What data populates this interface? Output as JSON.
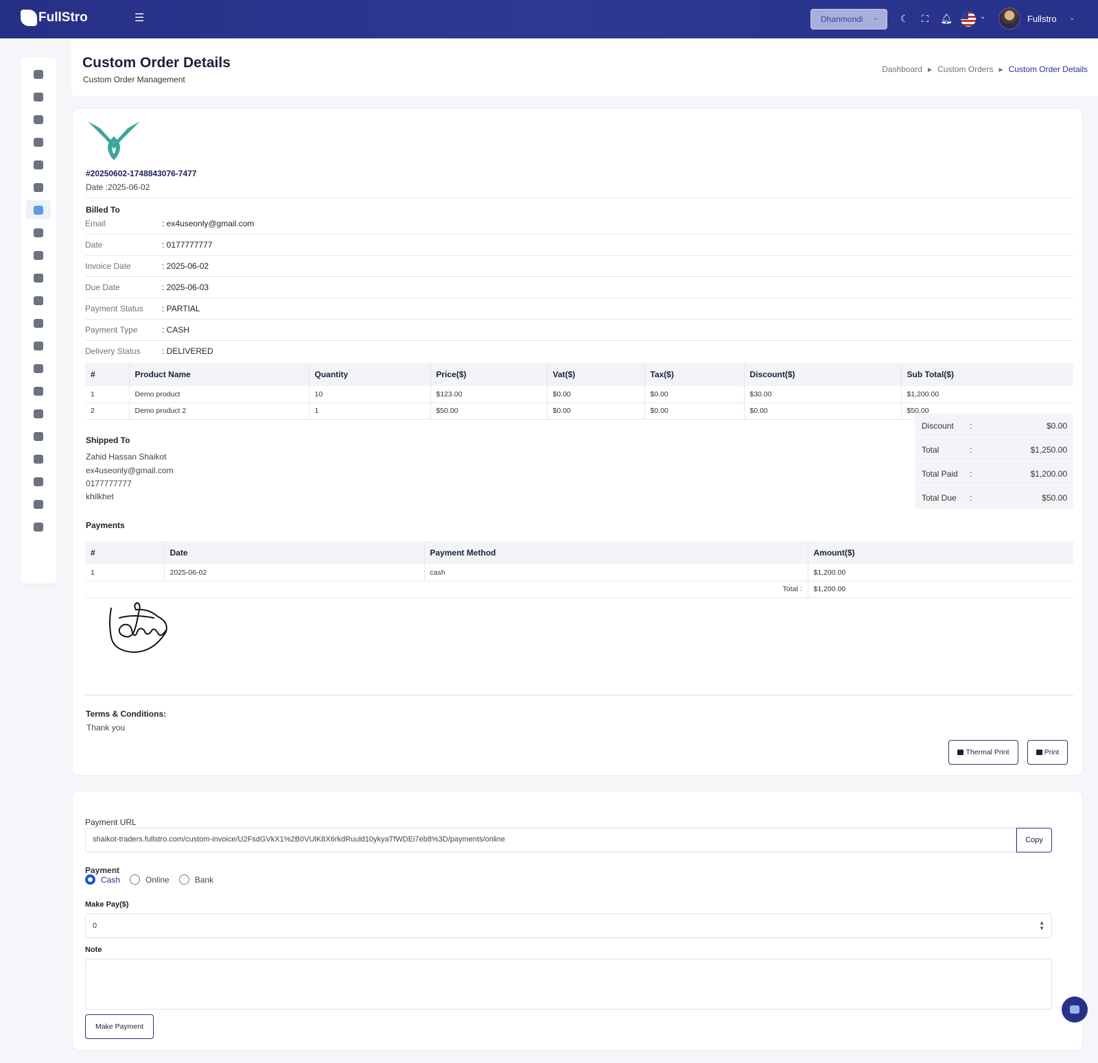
{
  "header": {
    "logo_text": "FullStro",
    "branch": "Dhanmondi",
    "user_name": "Fullstro"
  },
  "page": {
    "title": "Custom Order Details",
    "subtitle": "Custom Order Management",
    "breadcrumb": [
      "Dashboard",
      "Custom Orders",
      "Custom Order Details"
    ]
  },
  "invoice": {
    "number": "#20250602-1748843076-7477",
    "date": "Date :2025-06-02",
    "billed_to_title": "Billed To",
    "billed_rows": [
      {
        "label": "Email",
        "value": ": ex4useonly@gmail.com"
      },
      {
        "label": "Date",
        "value": ": 0177777777"
      },
      {
        "label": "Invoice Date",
        "value": ": 2025-06-02"
      },
      {
        "label": "Due Date",
        "value": ": 2025-06-03"
      },
      {
        "label": "Payment Status",
        "value": ": PARTIAL"
      },
      {
        "label": "Payment Type",
        "value": ": CASH"
      },
      {
        "label": "Delivery Status",
        "value": ": DELIVERED"
      }
    ],
    "items_columns": [
      "#",
      "Product Name",
      "Quantity",
      "Price($)",
      "Vat($)",
      "Tax($)",
      "Discount($)",
      "Sub Total($)"
    ],
    "items": [
      [
        "1",
        "Demo product",
        "10",
        "$123.00",
        "$0.00",
        "$0.00",
        "$30.00",
        "$1,200.00"
      ],
      [
        "2",
        "Demo product 2",
        "1",
        "$50.00",
        "$0.00",
        "$0.00",
        "$0.00",
        "$50.00"
      ]
    ],
    "shipped_to_title": "Shipped To",
    "shipped_to": [
      "Zahid Hassan Shaikot",
      "ex4useonly@gmail.com",
      "0177777777",
      "khilkhet"
    ],
    "totals": [
      {
        "label": "Discount",
        "sep": ":",
        "value": "$0.00"
      },
      {
        "label": "Total",
        "sep": ":",
        "value": "$1,250.00"
      },
      {
        "label": "Total Paid",
        "sep": ":",
        "value": "$1,200.00"
      },
      {
        "label": "Total Due",
        "sep": ":",
        "value": "$50.00"
      }
    ],
    "payments_title": "Payments",
    "payments_columns": [
      "#",
      "Date",
      "Payment Method",
      "Amount($)"
    ],
    "payments": [
      [
        "1",
        "2025-06-02",
        "cash",
        "$1,200.00"
      ]
    ],
    "payments_total_label": "Total :",
    "payments_total_value": "$1,200.00",
    "terms_title": "Terms & Conditions:",
    "terms_text": "Thank you",
    "thermal_print_label": "Thermal Print",
    "print_label": "Print"
  },
  "payment_form": {
    "url_label": "Payment URL",
    "url_value": "shaikot-traders.fullstro.com/custom-invoice/U2FsdGVkX1%2B0VUlK8X6rkdRuuld10ykyaTfWDEi7eb8%3D/payments/online",
    "copy_label": "Copy",
    "payment_label": "Payment",
    "methods": [
      {
        "label": "Cash",
        "checked": true
      },
      {
        "label": "Online",
        "checked": false
      },
      {
        "label": "Bank",
        "checked": false
      }
    ],
    "make_pay_label": "Make Pay($)",
    "make_pay_value": "0",
    "note_label": "Note",
    "note_value": "",
    "submit_label": "Make Payment"
  },
  "colors": {
    "primary": "#27318a",
    "accent_teal": "#3aa79a",
    "radio_active": "#1a56c9"
  }
}
